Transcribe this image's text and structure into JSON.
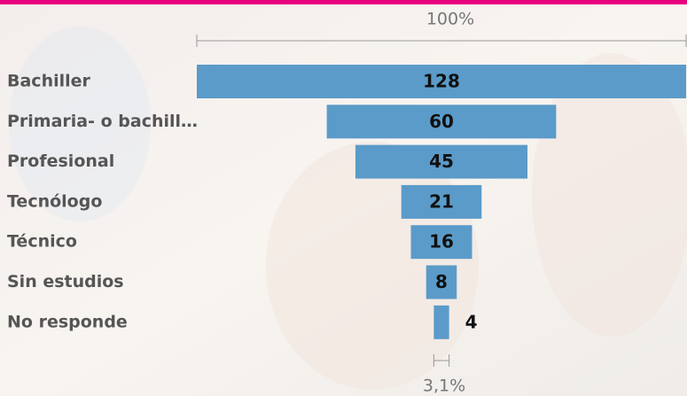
{
  "chart_data": {
    "type": "funnel",
    "categories": [
      "Bachiller",
      "Primaria- o bachill…",
      "Profesional",
      "Tecnólogo",
      "Técnico",
      "Sin estudios",
      "No responde"
    ],
    "values": [
      128,
      60,
      45,
      21,
      16,
      8,
      4
    ],
    "color": "#5b9bc9",
    "top_label": "100%",
    "bottom_label": "3,1%"
  }
}
